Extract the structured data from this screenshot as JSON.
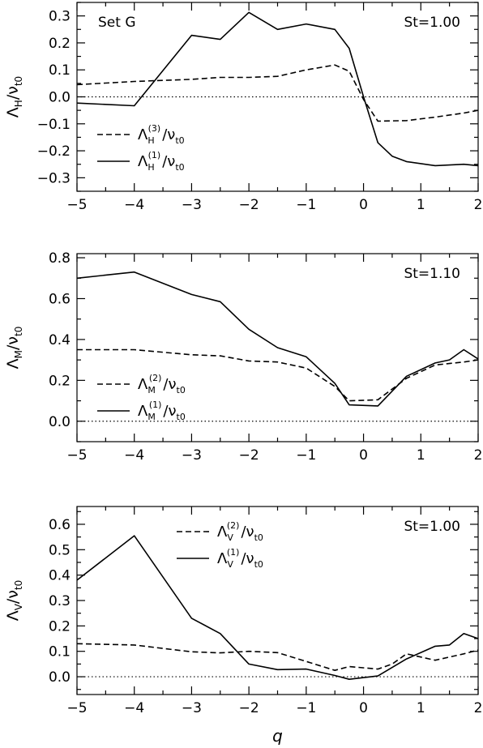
{
  "chart_data": [
    {
      "id": "panel-H",
      "type": "line",
      "ylabel": "Λ_H/ν_t0",
      "ylabel_main": "Λ",
      "ylabel_sub": "H",
      "ylabel_den": "/ν",
      "ylabel_den_sub": "t0",
      "annotation_left": "Set G",
      "annotation_right": "St=1.00",
      "xlim": [
        -5,
        2
      ],
      "ylim": [
        -0.35,
        0.35
      ],
      "xticks": [
        -5,
        -4,
        -3,
        -2,
        -1,
        0,
        1,
        2
      ],
      "yticks": [
        -0.3,
        -0.2,
        -0.1,
        0.0,
        0.1,
        0.2,
        0.3
      ],
      "ytick_labels": [
        "−0.3",
        "−0.2",
        "−0.1",
        "0.0",
        "0.1",
        "0.2",
        "0.3"
      ],
      "xtick_labels": [
        "−5",
        "−4",
        "−3",
        "−2",
        "−1",
        "0",
        "1",
        "2"
      ],
      "legend_placement": "lower-left",
      "series": [
        {
          "name": "Λ_H^(3)/ν_t0",
          "label_main": "Λ",
          "label_sub": "H",
          "label_sup": "(3)",
          "label_den": "/ν",
          "label_den_sub": "t0",
          "style": "dashed",
          "x": [
            -5,
            -4,
            -3,
            -2.5,
            -2,
            -1.5,
            -1,
            -0.5,
            -0.25,
            0,
            0.25,
            0.75,
            1.25,
            1.75,
            2
          ],
          "y": [
            0.045,
            0.057,
            0.065,
            0.072,
            0.072,
            0.076,
            0.1,
            0.118,
            0.095,
            -0.01,
            -0.09,
            -0.088,
            -0.075,
            -0.06,
            -0.05
          ]
        },
        {
          "name": "Λ_H^(1)/ν_t0",
          "label_main": "Λ",
          "label_sub": "H",
          "label_sup": "(1)",
          "label_den": "/ν",
          "label_den_sub": "t0",
          "style": "solid",
          "x": [
            -5,
            -4,
            -3,
            -2.5,
            -2,
            -1.5,
            -1,
            -0.5,
            -0.25,
            0,
            0.25,
            0.5,
            0.75,
            1.25,
            1.75,
            2
          ],
          "y": [
            -0.023,
            -0.033,
            0.228,
            0.213,
            0.313,
            0.25,
            0.27,
            0.25,
            0.18,
            0.0,
            -0.17,
            -0.22,
            -0.24,
            -0.255,
            -0.25,
            -0.255
          ]
        }
      ]
    },
    {
      "id": "panel-M",
      "type": "line",
      "ylabel": "Λ_M/ν_t0",
      "ylabel_main": "Λ",
      "ylabel_sub": "M",
      "ylabel_den": "/ν",
      "ylabel_den_sub": "t0",
      "annotation_right": "St=1.10",
      "xlim": [
        -5,
        2
      ],
      "ylim": [
        -0.1,
        0.82
      ],
      "xticks": [
        -5,
        -4,
        -3,
        -2,
        -1,
        0,
        1,
        2
      ],
      "yticks": [
        0.0,
        0.2,
        0.4,
        0.6,
        0.8
      ],
      "ytick_labels": [
        "0.0",
        "0.2",
        "0.4",
        "0.6",
        "0.8"
      ],
      "xtick_labels": [
        "−5",
        "−4",
        "−3",
        "−2",
        "−1",
        "0",
        "1",
        "2"
      ],
      "legend_placement": "lower-left",
      "series": [
        {
          "name": "Λ_M^(2)/ν_t0",
          "label_main": "Λ",
          "label_sub": "M",
          "label_sup": "(2)",
          "label_den": "/ν",
          "label_den_sub": "t0",
          "style": "dashed",
          "x": [
            -5,
            -4,
            -3,
            -2.5,
            -2,
            -1.5,
            -1,
            -0.5,
            -0.25,
            0.25,
            0.75,
            1.25,
            1.75,
            2
          ],
          "y": [
            0.35,
            0.35,
            0.325,
            0.32,
            0.295,
            0.29,
            0.26,
            0.17,
            0.1,
            0.105,
            0.21,
            0.275,
            0.29,
            0.3
          ]
        },
        {
          "name": "Λ_M^(1)/ν_t0",
          "label_main": "Λ",
          "label_sub": "M",
          "label_sup": "(1)",
          "label_den": "/ν",
          "label_den_sub": "t0",
          "style": "solid",
          "x": [
            -5,
            -4,
            -3,
            -2.5,
            -2,
            -1.5,
            -1,
            -0.5,
            -0.25,
            0.25,
            0.75,
            1.25,
            1.5,
            1.75,
            2
          ],
          "y": [
            0.7,
            0.73,
            0.62,
            0.585,
            0.45,
            0.36,
            0.315,
            0.185,
            0.08,
            0.075,
            0.22,
            0.285,
            0.3,
            0.35,
            0.305
          ]
        }
      ]
    },
    {
      "id": "panel-V",
      "type": "line",
      "xlabel": "q",
      "ylabel": "Λ_V/ν_t0",
      "ylabel_main": "Λ",
      "ylabel_sub": "V",
      "ylabel_den": "/ν",
      "ylabel_den_sub": "t0",
      "annotation_right": "St=1.00",
      "xlim": [
        -5,
        2
      ],
      "ylim": [
        -0.07,
        0.67
      ],
      "xticks": [
        -5,
        -4,
        -3,
        -2,
        -1,
        0,
        1,
        2
      ],
      "yticks": [
        0.0,
        0.1,
        0.2,
        0.3,
        0.4,
        0.5,
        0.6
      ],
      "ytick_labels": [
        "0.0",
        "0.1",
        "0.2",
        "0.3",
        "0.4",
        "0.5",
        "0.6"
      ],
      "xtick_labels": [
        "−5",
        "−4",
        "−3",
        "−2",
        "−1",
        "0",
        "1",
        "2"
      ],
      "legend_placement": "top-center",
      "series": [
        {
          "name": "Λ_V^(2)/ν_t0",
          "label_main": "Λ",
          "label_sub": "V",
          "label_sup": "(2)",
          "label_den": "/ν",
          "label_den_sub": "t0",
          "style": "dashed",
          "x": [
            -5,
            -4,
            -3,
            -2.5,
            -2,
            -1.5,
            -1,
            -0.5,
            -0.25,
            0.25,
            0.5,
            0.75,
            1.25,
            1.75,
            2
          ],
          "y": [
            0.13,
            0.125,
            0.098,
            0.094,
            0.1,
            0.095,
            0.06,
            0.025,
            0.04,
            0.03,
            0.05,
            0.09,
            0.065,
            0.09,
            0.105
          ]
        },
        {
          "name": "Λ_V^(1)/ν_t0",
          "label_main": "Λ",
          "label_sub": "V",
          "label_sup": "(1)",
          "label_den": "/ν",
          "label_den_sub": "t0",
          "style": "solid",
          "x": [
            -5,
            -4,
            -3,
            -2.5,
            -2,
            -1.5,
            -1,
            -0.5,
            -0.25,
            0.25,
            0.75,
            1.25,
            1.5,
            1.75,
            2
          ],
          "y": [
            0.38,
            0.555,
            0.23,
            0.17,
            0.05,
            0.028,
            0.03,
            0.005,
            -0.01,
            0.003,
            0.07,
            0.12,
            0.125,
            0.17,
            0.15
          ]
        }
      ]
    }
  ]
}
